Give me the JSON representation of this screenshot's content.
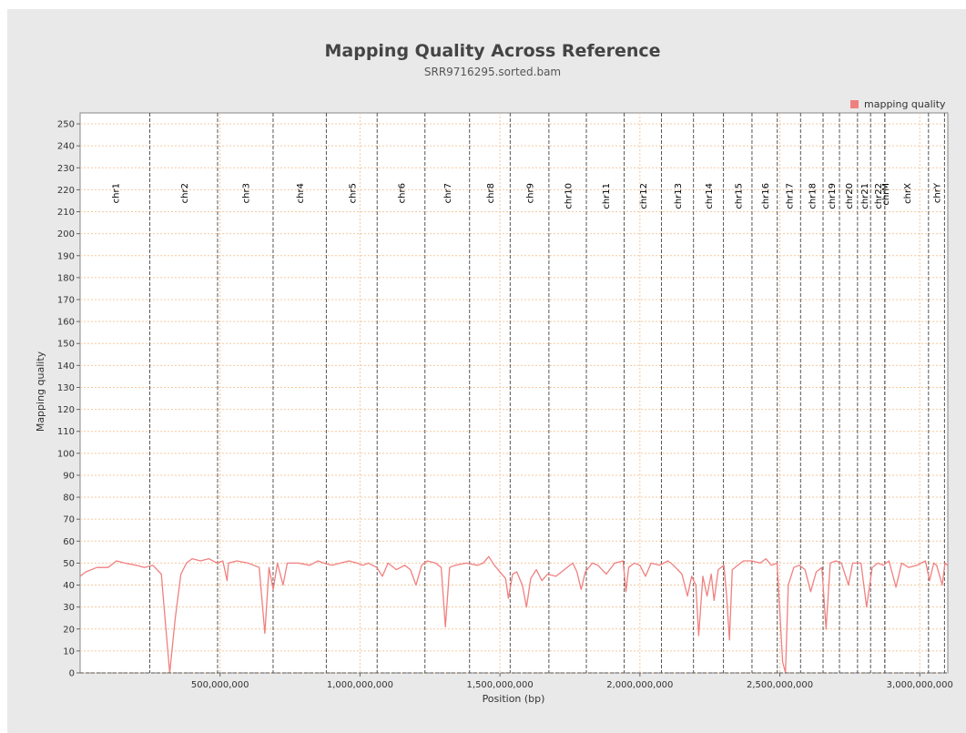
{
  "chart_data": {
    "type": "line",
    "title": "Mapping Quality Across Reference",
    "subtitle": "SRR9716295.sorted.bam",
    "xlabel": "Position (bp)",
    "ylabel": "Mapping quality",
    "xlim": [
      0,
      3100000000
    ],
    "ylim": [
      0,
      255
    ],
    "grid": true,
    "legend": {
      "placement": "top-right"
    },
    "x_ticks": [
      500000000,
      1000000000,
      1500000000,
      2000000000,
      2500000000,
      3000000000
    ],
    "x_tick_labels": [
      "500,000,000",
      "1,000,000,000",
      "1,500,000,000",
      "2,000,000,000",
      "2,500,000,000",
      "3,000,000,000"
    ],
    "y_ticks": [
      0,
      10,
      20,
      30,
      40,
      50,
      60,
      70,
      80,
      90,
      100,
      110,
      120,
      130,
      140,
      150,
      160,
      170,
      180,
      190,
      200,
      210,
      220,
      230,
      240,
      250
    ],
    "series": [
      {
        "name": "mapping quality",
        "color": "#f08080",
        "points": [
          [
            0,
            44
          ],
          [
            20000000,
            46
          ],
          [
            60000000,
            48
          ],
          [
            100000000,
            48
          ],
          [
            130000000,
            51
          ],
          [
            160000000,
            50
          ],
          [
            200000000,
            49
          ],
          [
            230000000,
            48
          ],
          [
            260000000,
            49
          ],
          [
            290000000,
            45
          ],
          [
            300000000,
            30
          ],
          [
            320000000,
            0
          ],
          [
            340000000,
            25
          ],
          [
            360000000,
            45
          ],
          [
            380000000,
            50
          ],
          [
            400000000,
            52
          ],
          [
            430000000,
            51
          ],
          [
            460000000,
            52
          ],
          [
            490000000,
            50
          ],
          [
            510000000,
            51
          ],
          [
            525000000,
            42
          ],
          [
            530000000,
            50
          ],
          [
            560000000,
            51
          ],
          [
            600000000,
            50
          ],
          [
            620000000,
            49
          ],
          [
            640000000,
            48
          ],
          [
            660000000,
            18
          ],
          [
            675000000,
            48
          ],
          [
            690000000,
            38
          ],
          [
            705000000,
            50
          ],
          [
            725000000,
            40
          ],
          [
            740000000,
            50
          ],
          [
            780000000,
            50
          ],
          [
            820000000,
            49
          ],
          [
            850000000,
            51
          ],
          [
            870000000,
            50
          ],
          [
            900000000,
            49
          ],
          [
            930000000,
            50
          ],
          [
            960000000,
            51
          ],
          [
            990000000,
            50
          ],
          [
            1010000000,
            49
          ],
          [
            1030000000,
            50
          ],
          [
            1060000000,
            48
          ],
          [
            1080000000,
            44
          ],
          [
            1100000000,
            50
          ],
          [
            1130000000,
            47
          ],
          [
            1160000000,
            49
          ],
          [
            1180000000,
            47
          ],
          [
            1200000000,
            40
          ],
          [
            1220000000,
            49
          ],
          [
            1240000000,
            51
          ],
          [
            1270000000,
            50
          ],
          [
            1290000000,
            48
          ],
          [
            1305000000,
            21
          ],
          [
            1320000000,
            48
          ],
          [
            1340000000,
            49
          ],
          [
            1380000000,
            50
          ],
          [
            1420000000,
            49
          ],
          [
            1440000000,
            50
          ],
          [
            1460000000,
            53
          ],
          [
            1480000000,
            49
          ],
          [
            1500000000,
            46
          ],
          [
            1520000000,
            43
          ],
          [
            1530000000,
            34
          ],
          [
            1545000000,
            45
          ],
          [
            1560000000,
            46
          ],
          [
            1580000000,
            40
          ],
          [
            1595000000,
            30
          ],
          [
            1610000000,
            43
          ],
          [
            1630000000,
            47
          ],
          [
            1650000000,
            42
          ],
          [
            1670000000,
            45
          ],
          [
            1700000000,
            44
          ],
          [
            1730000000,
            47
          ],
          [
            1760000000,
            50
          ],
          [
            1775000000,
            46
          ],
          [
            1790000000,
            38
          ],
          [
            1805000000,
            46
          ],
          [
            1830000000,
            50
          ],
          [
            1850000000,
            49
          ],
          [
            1880000000,
            45
          ],
          [
            1910000000,
            50
          ],
          [
            1940000000,
            51
          ],
          [
            1950000000,
            37
          ],
          [
            1960000000,
            48
          ],
          [
            1980000000,
            50
          ],
          [
            2000000000,
            49
          ],
          [
            2020000000,
            44
          ],
          [
            2040000000,
            50
          ],
          [
            2070000000,
            49
          ],
          [
            2100000000,
            51
          ],
          [
            2120000000,
            49
          ],
          [
            2150000000,
            45
          ],
          [
            2170000000,
            35
          ],
          [
            2185000000,
            44
          ],
          [
            2200000000,
            40
          ],
          [
            2210000000,
            17
          ],
          [
            2225000000,
            44
          ],
          [
            2240000000,
            35
          ],
          [
            2255000000,
            45
          ],
          [
            2265000000,
            33
          ],
          [
            2280000000,
            47
          ],
          [
            2300000000,
            49
          ],
          [
            2310000000,
            35
          ],
          [
            2320000000,
            15
          ],
          [
            2330000000,
            47
          ],
          [
            2350000000,
            49
          ],
          [
            2370000000,
            51
          ],
          [
            2400000000,
            51
          ],
          [
            2430000000,
            50
          ],
          [
            2450000000,
            52
          ],
          [
            2470000000,
            49
          ],
          [
            2490000000,
            50
          ],
          [
            2510000000,
            5
          ],
          [
            2520000000,
            0
          ],
          [
            2530000000,
            40
          ],
          [
            2550000000,
            48
          ],
          [
            2570000000,
            49
          ],
          [
            2590000000,
            47
          ],
          [
            2610000000,
            37
          ],
          [
            2630000000,
            46
          ],
          [
            2650000000,
            48
          ],
          [
            2665000000,
            20
          ],
          [
            2680000000,
            50
          ],
          [
            2700000000,
            51
          ],
          [
            2720000000,
            50
          ],
          [
            2745000000,
            40
          ],
          [
            2760000000,
            50
          ],
          [
            2790000000,
            50
          ],
          [
            2810000000,
            30
          ],
          [
            2830000000,
            48
          ],
          [
            2850000000,
            50
          ],
          [
            2870000000,
            49
          ],
          [
            2890000000,
            51
          ],
          [
            2915000000,
            39
          ],
          [
            2935000000,
            50
          ],
          [
            2960000000,
            48
          ],
          [
            2990000000,
            49
          ],
          [
            3020000000,
            51
          ],
          [
            3035000000,
            42
          ],
          [
            3050000000,
            50
          ],
          [
            3060000000,
            49
          ],
          [
            3080000000,
            40
          ],
          [
            3090000000,
            50
          ],
          [
            3100000000,
            49
          ]
        ]
      }
    ],
    "chromosomes": [
      {
        "name": "chr1",
        "start": 0,
        "end": 248956422
      },
      {
        "name": "chr2",
        "start": 248956422,
        "end": 491149951
      },
      {
        "name": "chr3",
        "start": 491149951,
        "end": 689445510
      },
      {
        "name": "chr4",
        "start": 689445510,
        "end": 879660065
      },
      {
        "name": "chr5",
        "start": 879660065,
        "end": 1061198324
      },
      {
        "name": "chr6",
        "start": 1061198324,
        "end": 1232004303
      },
      {
        "name": "chr7",
        "start": 1232004303,
        "end": 1391350276
      },
      {
        "name": "chr8",
        "start": 1391350276,
        "end": 1536488912
      },
      {
        "name": "chr9",
        "start": 1536488912,
        "end": 1674883629
      },
      {
        "name": "chr10",
        "start": 1674883629,
        "end": 1808681051
      },
      {
        "name": "chr11",
        "start": 1808681051,
        "end": 1943767673
      },
      {
        "name": "chr12",
        "start": 1943767673,
        "end": 2077042982
      },
      {
        "name": "chr13",
        "start": 2077042982,
        "end": 2191407310
      },
      {
        "name": "chr14",
        "start": 2191407310,
        "end": 2298451028
      },
      {
        "name": "chr15",
        "start": 2298451028,
        "end": 2400442217
      },
      {
        "name": "chr16",
        "start": 2400442217,
        "end": 2490780562
      },
      {
        "name": "chr17",
        "start": 2490780562,
        "end": 2574038003
      },
      {
        "name": "chr18",
        "start": 2574038003,
        "end": 2654411288
      },
      {
        "name": "chr19",
        "start": 2654411288,
        "end": 2713028904
      },
      {
        "name": "chr20",
        "start": 2713028904,
        "end": 2777473071
      },
      {
        "name": "chr21",
        "start": 2777473071,
        "end": 2824183054
      },
      {
        "name": "chr22",
        "start": 2824183054,
        "end": 2875001522
      },
      {
        "name": "chrM",
        "start": 2875001522,
        "end": 2875018091
      },
      {
        "name": "chrX",
        "start": 2875018091,
        "end": 3031058986
      },
      {
        "name": "chrY",
        "start": 3031058986,
        "end": 3088286401
      }
    ]
  }
}
